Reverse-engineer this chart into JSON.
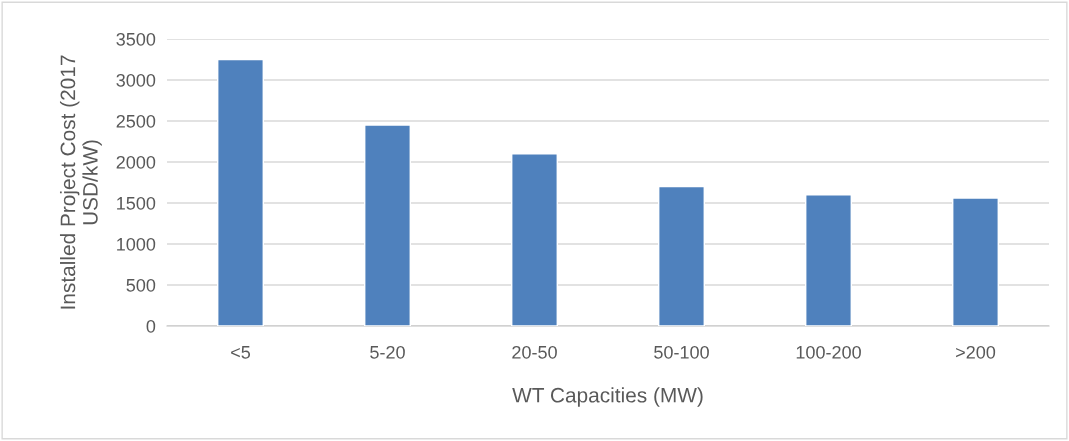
{
  "chart_data": {
    "type": "bar",
    "xlabel": "WT Capacities (MW)",
    "ylabel": "Installed Project Cost (2017\nUSD/kW)",
    "categories": [
      "<5",
      "5-20",
      "20-50",
      "50-100",
      "100-200",
      ">200"
    ],
    "series": [
      {
        "color": "#4f81bd",
        "values": [
          3250,
          2450,
          2100,
          1700,
          1600,
          1560
        ]
      }
    ],
    "ylim": [
      0,
      3500
    ],
    "yticks": [
      0,
      500,
      1000,
      1500,
      2000,
      2500,
      3000,
      3500
    ],
    "grid": "y",
    "legend": false
  }
}
